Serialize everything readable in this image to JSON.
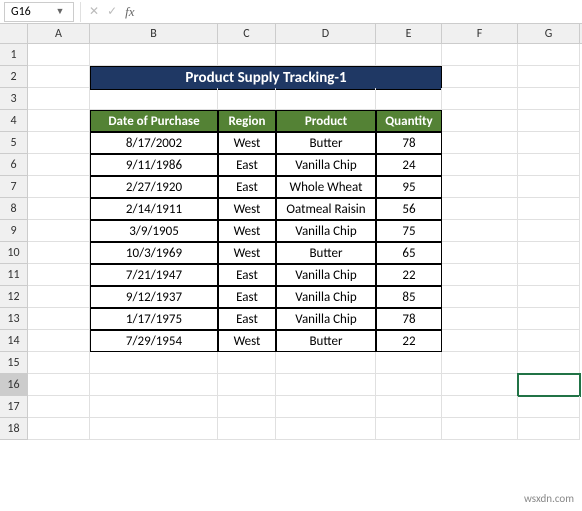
{
  "formula_bar": {
    "cell_ref": "G16",
    "formula": "",
    "cancel_glyph": "✕",
    "confirm_glyph": "✓",
    "fx_label": "fx",
    "dropdown_glyph": "▼"
  },
  "columns": [
    "A",
    "B",
    "C",
    "D",
    "E",
    "F",
    "G"
  ],
  "rows": [
    "1",
    "2",
    "3",
    "4",
    "5",
    "6",
    "7",
    "8",
    "9",
    "10",
    "11",
    "12",
    "13",
    "14",
    "15",
    "16",
    "17",
    "18"
  ],
  "active_row": "16",
  "active_col": "G",
  "title_banner": {
    "text": "Product Supply Tracking-1",
    "bg_color": "#1f3864",
    "text_color": "#ffffff"
  },
  "table": {
    "header_bg": "#548235",
    "header_fg": "#ffffff",
    "border_color": "#000000",
    "columns": [
      "Date of Purchase",
      "Region",
      "Product",
      "Quantity"
    ],
    "rows": [
      [
        "8/17/2002",
        "West",
        "Butter",
        "78"
      ],
      [
        "9/11/1986",
        "East",
        "Vanilla Chip",
        "24"
      ],
      [
        "2/27/1920",
        "East",
        "Whole Wheat",
        "95"
      ],
      [
        "2/14/1911",
        "West",
        "Oatmeal Raisin",
        "56"
      ],
      [
        "3/9/1905",
        "West",
        "Vanilla Chip",
        "75"
      ],
      [
        "10/3/1969",
        "West",
        "Butter",
        "65"
      ],
      [
        "7/21/1947",
        "East",
        "Vanilla Chip",
        "22"
      ],
      [
        "9/12/1937",
        "East",
        "Vanilla Chip",
        "85"
      ],
      [
        "1/17/1975",
        "East",
        "Vanilla Chip",
        "78"
      ],
      [
        "7/29/1954",
        "West",
        "Butter",
        "22"
      ]
    ]
  },
  "watermark": "wsxdn.com"
}
